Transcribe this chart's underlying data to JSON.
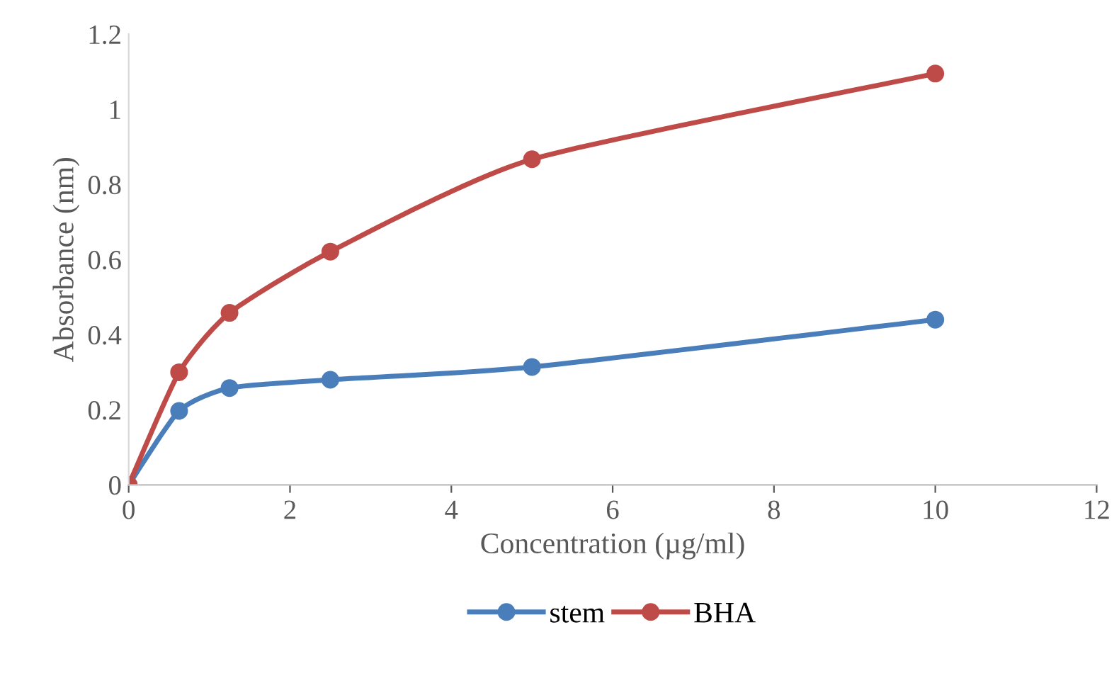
{
  "chart_data": {
    "type": "line",
    "xlabel": "Concentration (µg/ml)",
    "ylabel": "Absorbance (nm)",
    "xlim": [
      0,
      12
    ],
    "xticks": [
      0,
      2,
      4,
      6,
      8,
      10,
      12
    ],
    "ylim": [
      0,
      1.2
    ],
    "yticks": [
      0,
      0.2,
      0.4,
      0.6,
      0.8,
      1,
      1.2
    ],
    "grid": false,
    "legend": "bottom",
    "marker": "circle",
    "line_style": "solid",
    "x": [
      0,
      0.625,
      1.25,
      2.5,
      5,
      10
    ],
    "series": [
      {
        "name": "stem",
        "color": "#4a7ebb",
        "values": [
          0,
          0.197,
          0.258,
          0.28,
          0.314,
          0.44
        ]
      },
      {
        "name": "BHA",
        "color": "#be4b48",
        "values": [
          0,
          0.3,
          0.458,
          0.621,
          0.867,
          1.095
        ]
      }
    ]
  }
}
